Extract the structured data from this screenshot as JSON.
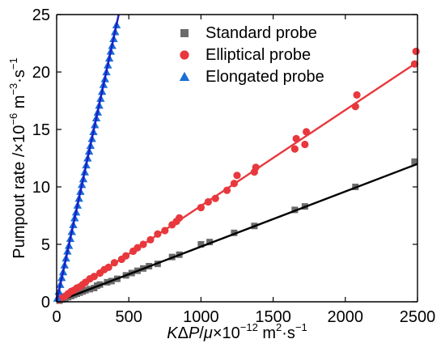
{
  "chart_data": {
    "type": "scatter",
    "xlabel_parts": {
      "k": "K",
      "delta": "Δ",
      "p": "P",
      "slash": "/",
      "mu": "μ",
      "times": "×10",
      "exp": "−12",
      "units_main": " m",
      "units_sq": "2",
      "units_rest": "·s",
      "units_exp": "−1"
    },
    "ylabel_parts": {
      "main": "Pumpout rate /×10",
      "exp1": "−6",
      "mid": " m",
      "exp2": "−3",
      "rest": "·s",
      "exp3": "−1"
    },
    "xlim": [
      0,
      2500
    ],
    "ylim": [
      0,
      25
    ],
    "xticks": [
      0,
      500,
      1000,
      1500,
      2000,
      2500
    ],
    "yticks": [
      0,
      5,
      10,
      15,
      20,
      25
    ],
    "legend_position": "top-right",
    "series": [
      {
        "name": "Standard probe",
        "marker": "square",
        "color": "#6b6b6b",
        "line_color": "#000000",
        "fit": {
          "x": [
            0,
            2500
          ],
          "y": [
            0,
            12.0
          ]
        },
        "x": [
          20,
          40,
          60,
          80,
          100,
          120,
          140,
          160,
          180,
          200,
          230,
          260,
          280,
          300,
          350,
          380,
          420,
          480,
          520,
          560,
          600,
          640,
          700,
          800,
          850,
          1000,
          1060,
          1230,
          1370,
          1650,
          1720,
          2070,
          2480
        ],
        "y": [
          0.1,
          0.2,
          0.3,
          0.4,
          0.5,
          0.6,
          0.7,
          0.8,
          0.9,
          1.0,
          1.1,
          1.2,
          1.4,
          1.5,
          1.7,
          1.8,
          2.0,
          2.3,
          2.5,
          2.7,
          2.9,
          3.1,
          3.3,
          3.9,
          4.1,
          5.0,
          5.2,
          6.0,
          6.6,
          8.0,
          8.3,
          10.0,
          12.2
        ]
      },
      {
        "name": "Elliptical probe",
        "marker": "circle",
        "color": "#e8383d",
        "line_color": "#e8383d",
        "fit": {
          "x": [
            0,
            2480
          ],
          "y": [
            0,
            20.7
          ]
        },
        "x": [
          20,
          40,
          60,
          80,
          100,
          120,
          140,
          160,
          180,
          200,
          230,
          260,
          300,
          330,
          360,
          400,
          450,
          480,
          530,
          560,
          600,
          650,
          700,
          750,
          800,
          830,
          850,
          1000,
          1050,
          1100,
          1180,
          1230,
          1250,
          1370,
          1380,
          1650,
          1660,
          1720,
          1730,
          2070,
          2080,
          2480,
          2490
        ],
        "y": [
          0.2,
          0.4,
          0.5,
          0.7,
          0.9,
          1.0,
          1.2,
          1.3,
          1.5,
          1.7,
          2.0,
          2.2,
          2.5,
          2.8,
          3.0,
          3.4,
          3.7,
          4.0,
          4.4,
          4.7,
          5.0,
          5.4,
          5.9,
          6.2,
          6.7,
          7.0,
          7.3,
          8.2,
          8.7,
          9.0,
          9.7,
          10.3,
          11.0,
          11.3,
          11.7,
          13.3,
          14.2,
          13.7,
          14.8,
          17.0,
          18.0,
          20.7,
          21.8
        ]
      },
      {
        "name": "Elongated probe",
        "marker": "triangle",
        "color": "#1a6fd4",
        "line_color": "#1c1ccc",
        "fit": {
          "x": [
            0,
            430
          ],
          "y": [
            0,
            25.0
          ]
        },
        "x": [
          5,
          15,
          25,
          35,
          45,
          55,
          65,
          75,
          85,
          95,
          105,
          115,
          125,
          135,
          145,
          155,
          165,
          175,
          185,
          195,
          205,
          215,
          225,
          235,
          245,
          255,
          265,
          275,
          285,
          295,
          305,
          315,
          325,
          335,
          345,
          355,
          365,
          375,
          385,
          395,
          405,
          415
        ],
        "y": [
          0.3,
          0.9,
          1.5,
          2.1,
          2.6,
          3.2,
          3.8,
          4.4,
          4.9,
          5.5,
          6.1,
          6.7,
          7.3,
          7.8,
          8.4,
          9.0,
          9.6,
          10.2,
          10.7,
          11.3,
          11.9,
          12.5,
          13.1,
          13.6,
          14.2,
          14.8,
          15.4,
          16.0,
          16.5,
          17.1,
          17.7,
          18.3,
          18.9,
          19.4,
          20.0,
          20.6,
          21.2,
          21.8,
          22.3,
          22.9,
          23.5,
          24.1
        ]
      }
    ]
  }
}
